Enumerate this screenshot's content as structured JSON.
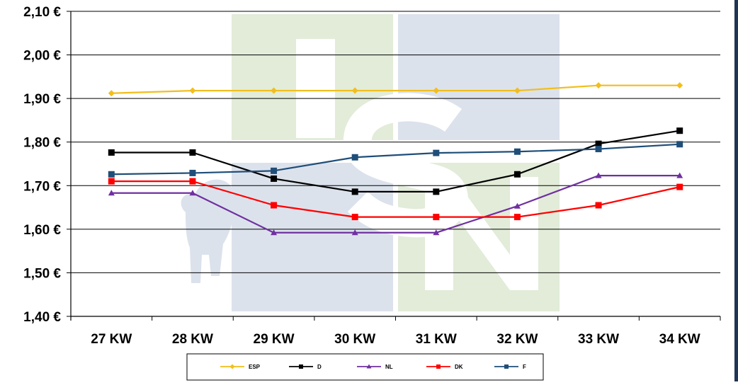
{
  "chart_data": {
    "type": "line",
    "categories": [
      "27 KW",
      "28 KW",
      "29 KW",
      "30 KW",
      "31 KW",
      "32 KW",
      "33 KW",
      "34 KW"
    ],
    "y_ticks": [
      "1,40 €",
      "1,50 €",
      "1,60 €",
      "1,70 €",
      "1,80 €",
      "1,90 €",
      "2,00 €",
      "2,10 €"
    ],
    "ylim": [
      1.4,
      2.1
    ],
    "grid": true,
    "legend_position": "bottom",
    "series": [
      {
        "name": "ESP",
        "color": "#f2be1c",
        "marker": "diamond",
        "values": [
          1.912,
          1.918,
          1.918,
          1.918,
          1.918,
          1.918,
          1.93,
          1.93
        ]
      },
      {
        "name": "D",
        "color": "#000000",
        "marker": "square",
        "values": [
          1.776,
          1.776,
          1.716,
          1.686,
          1.686,
          1.726,
          1.796,
          1.826
        ]
      },
      {
        "name": "NL",
        "color": "#7030a0",
        "marker": "triangle",
        "values": [
          1.683,
          1.683,
          1.592,
          1.592,
          1.592,
          1.653,
          1.723,
          1.723
        ]
      },
      {
        "name": "DK",
        "color": "#ff0000",
        "marker": "square",
        "values": [
          1.71,
          1.71,
          1.655,
          1.628,
          1.628,
          1.628,
          1.655,
          1.697
        ]
      },
      {
        "name": "F",
        "color": "#1f4e79",
        "marker": "square",
        "values": [
          1.726,
          1.729,
          1.734,
          1.765,
          1.775,
          1.778,
          1.784,
          1.795
        ]
      }
    ]
  },
  "watermark": {
    "green": "#e2ecd9",
    "blue": "#dce2ec"
  }
}
